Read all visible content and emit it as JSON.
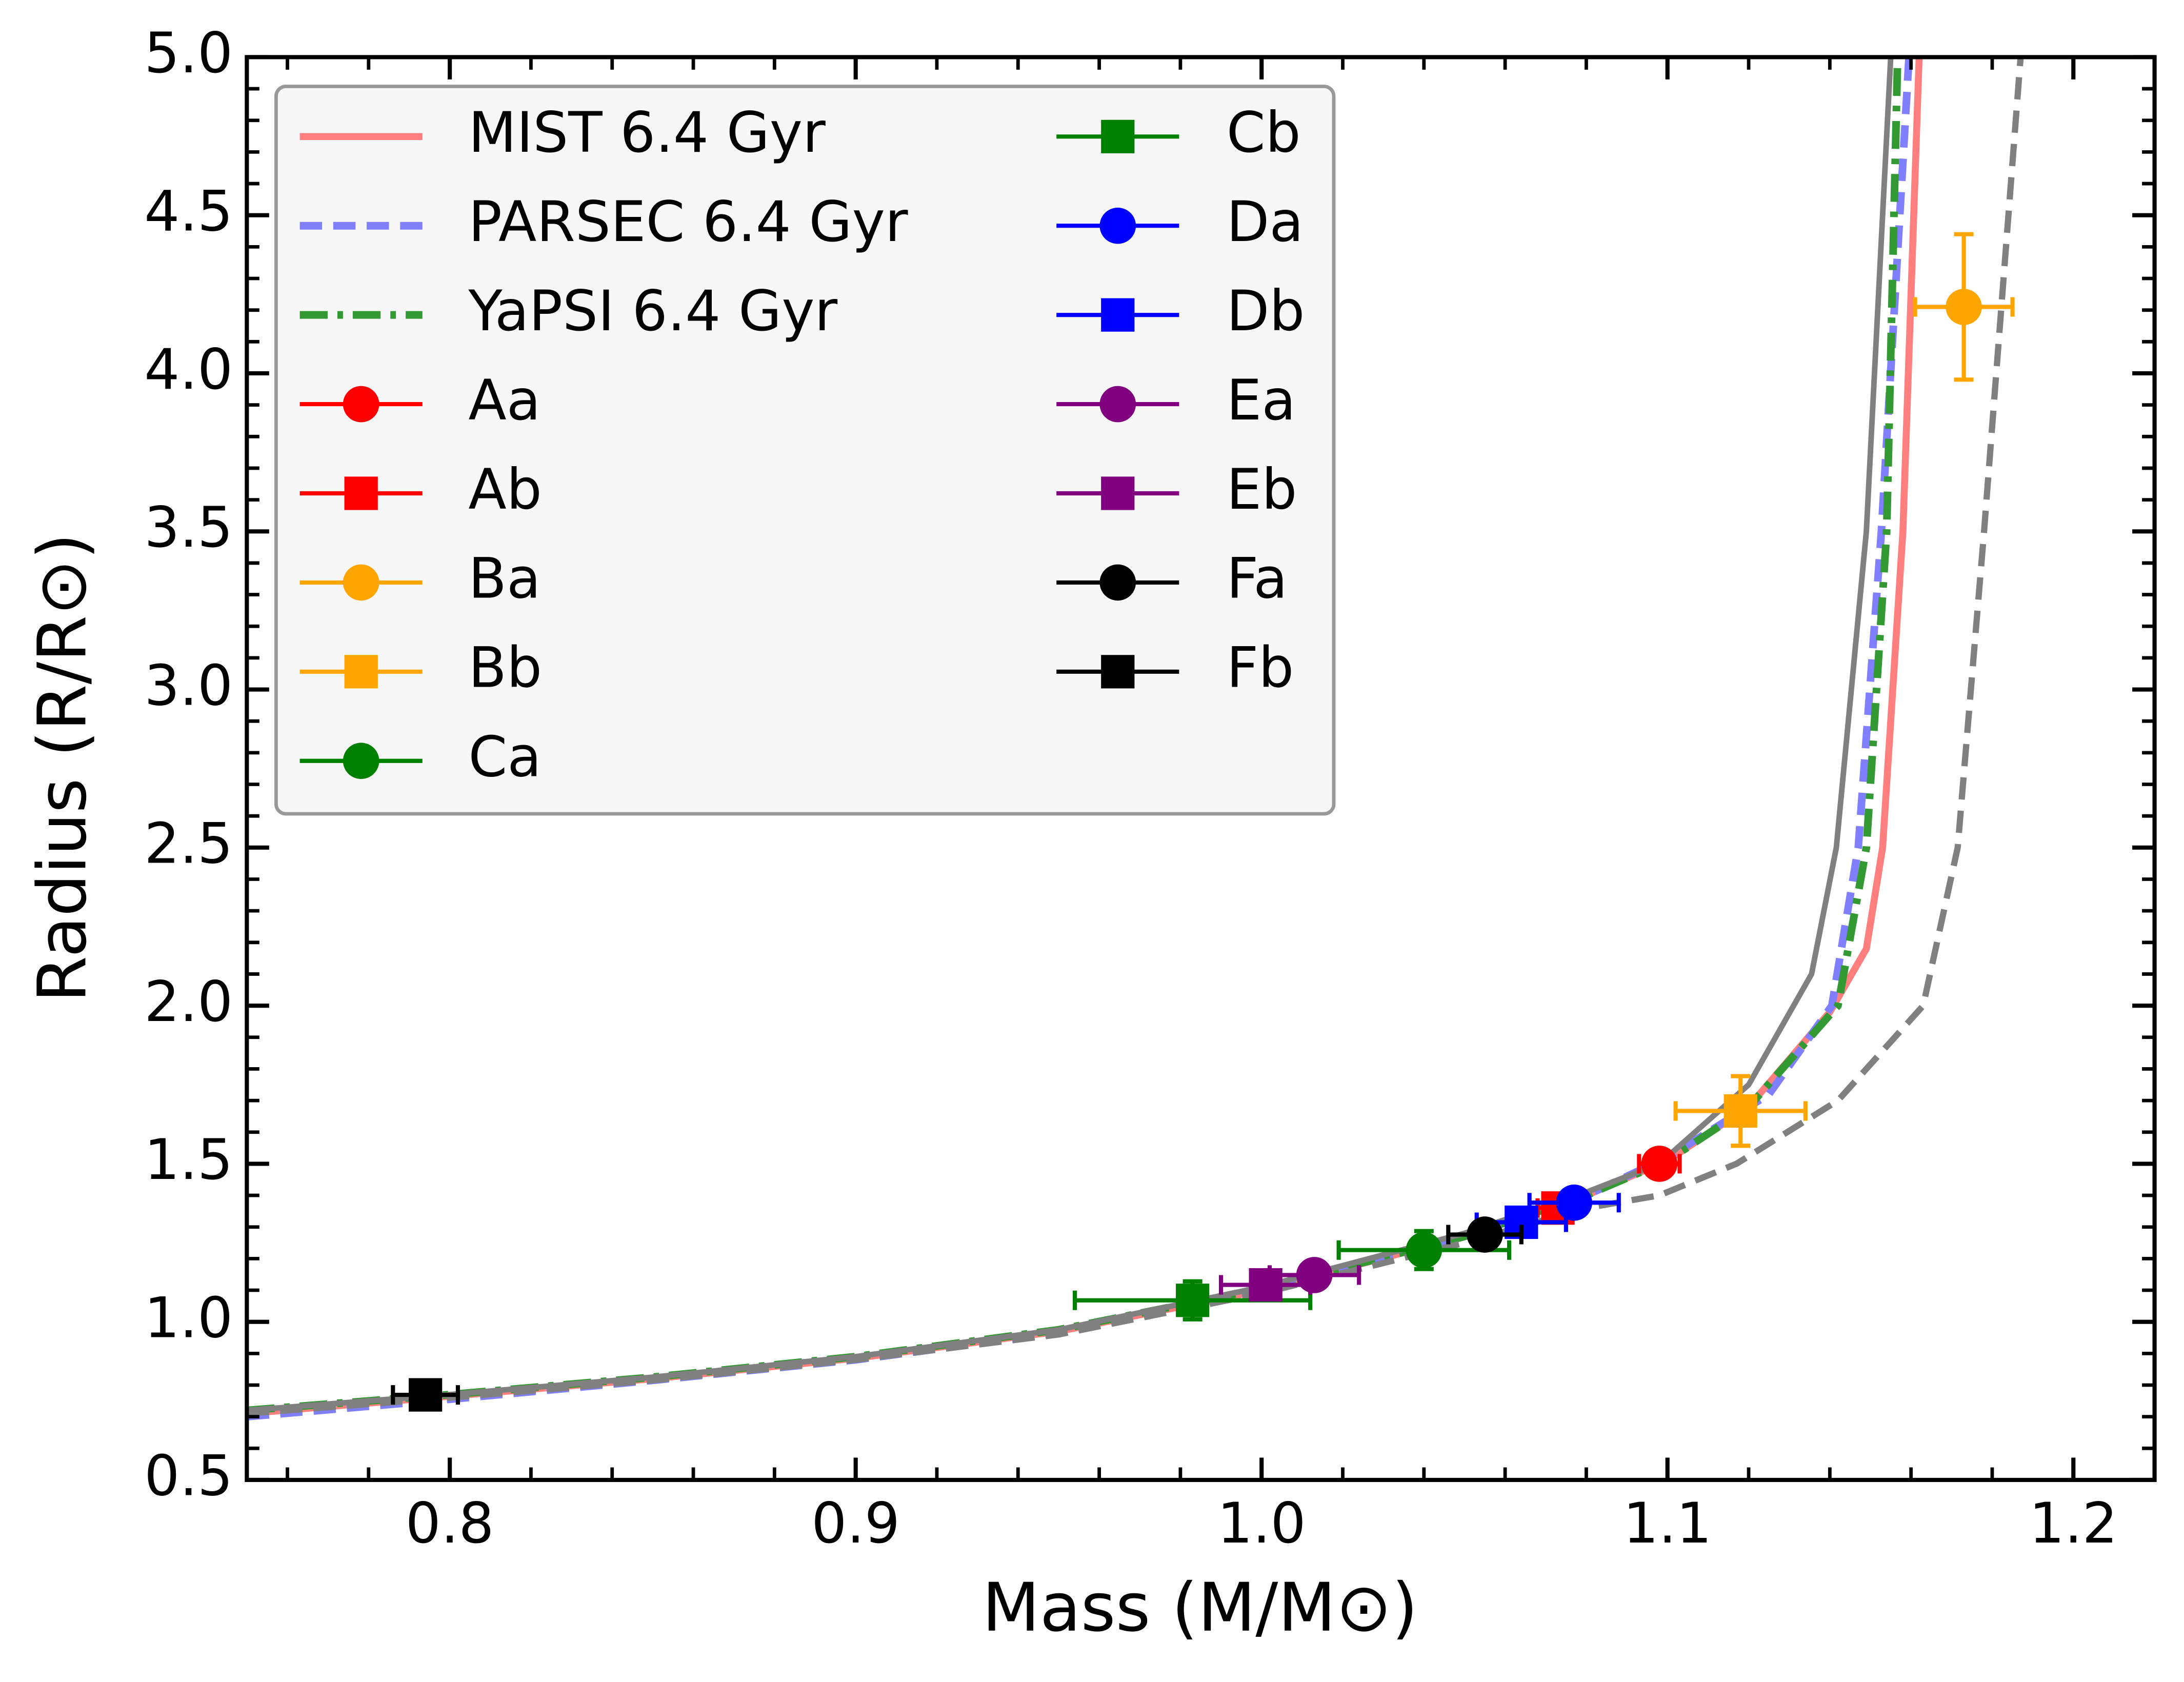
{
  "chart_data": {
    "type": "scatter",
    "xlabel": "Mass (M/M⊙)",
    "ylabel": "Radius (R/R⊙)",
    "xlim": [
      0.75,
      1.22
    ],
    "ylim": [
      0.5,
      5.0
    ],
    "xticks": [
      0.8,
      0.9,
      {
        "value": 1,
        "label": "1.0"
      },
      1.1,
      1.2
    ],
    "yticks": [
      0.5,
      {
        "value": 1,
        "label": "1.0"
      },
      1.5,
      {
        "value": 2,
        "label": "2.0"
      },
      2.5,
      {
        "value": 3,
        "label": "3.0"
      },
      3.5,
      {
        "value": 4,
        "label": "4.0"
      },
      4.5,
      {
        "value": 5,
        "label": "5.0"
      }
    ],
    "x_minor_ticks": [
      0.76,
      0.78,
      0.82,
      0.84,
      0.86,
      0.88,
      0.92,
      0.94,
      0.96,
      0.98,
      1.02,
      1.04,
      1.06,
      1.08,
      1.12,
      1.14,
      1.16,
      1.18
    ],
    "y_minor_ticks": [
      0.6,
      0.7,
      0.8,
      0.9,
      1.1,
      1.2,
      1.3,
      1.4,
      1.6,
      1.7,
      1.8,
      1.9,
      2.1,
      2.2,
      2.3,
      2.4,
      2.6,
      2.7,
      2.8,
      2.9,
      3.1,
      3.2,
      3.3,
      3.4,
      3.6,
      3.7,
      3.8,
      3.9,
      4.1,
      4.2,
      4.3,
      4.4,
      4.6,
      4.7,
      4.8,
      4.9
    ],
    "legend": "upper left",
    "series": [
      {
        "name": "MIST 6.4 Gyr",
        "kind": "line",
        "style": "solid",
        "color": "#ff7f7f",
        "x": [
          0.75,
          0.8,
          0.85,
          0.9,
          0.95,
          1.0,
          1.05,
          1.08,
          1.1,
          1.12,
          1.14,
          1.149,
          1.153,
          1.158,
          1.162
        ],
        "values": [
          0.71,
          0.765,
          0.82,
          0.885,
          0.97,
          1.1,
          1.27,
          1.4,
          1.51,
          1.68,
          1.98,
          2.18,
          2.5,
          3.5,
          5.0
        ]
      },
      {
        "name": "PARSEC 6.4 Gyr",
        "kind": "line",
        "style": "dashed",
        "color": "#7f7fff",
        "x": [
          0.75,
          0.8,
          0.85,
          0.9,
          0.95,
          1.0,
          1.05,
          1.08,
          1.1,
          1.125,
          1.1405,
          1.147,
          1.1527,
          1.1595
        ],
        "values": [
          0.7,
          0.755,
          0.815,
          0.88,
          0.965,
          1.095,
          1.27,
          1.4,
          1.52,
          1.72,
          2.0,
          2.5,
          3.5,
          5.0
        ]
      },
      {
        "name": "YaPSI 6.4 Gyr",
        "kind": "line",
        "style": "dashdot",
        "color": "#339933",
        "x": [
          0.75,
          0.8,
          0.85,
          0.9,
          0.95,
          1.0,
          1.05,
          1.08,
          1.1,
          1.12,
          1.142,
          1.149,
          1.154,
          1.1567
        ],
        "values": [
          0.72,
          0.77,
          0.825,
          0.89,
          0.975,
          1.105,
          1.27,
          1.4,
          1.51,
          1.68,
          2.0,
          2.5,
          3.5,
          5.0
        ]
      },
      {
        "kind": "line",
        "style": "solid",
        "color": "#808080",
        "x": [
          0.75,
          0.8,
          0.85,
          0.9,
          0.95,
          1.0,
          1.05,
          1.08,
          1.098,
          1.12,
          1.1355,
          1.1416,
          1.149,
          1.155
        ],
        "values": [
          0.72,
          0.77,
          0.825,
          0.89,
          0.975,
          1.11,
          1.28,
          1.41,
          1.5,
          1.75,
          2.1,
          2.5,
          3.5,
          5.0
        ]
      },
      {
        "kind": "line",
        "style": "dashed",
        "color": "#808080",
        "x": [
          0.75,
          0.8,
          0.85,
          0.9,
          0.95,
          1.0,
          1.05,
          1.08,
          1.098,
          1.117,
          1.142,
          1.163,
          1.1715,
          1.178,
          1.187
        ],
        "values": [
          0.71,
          0.76,
          0.815,
          0.88,
          0.96,
          1.09,
          1.25,
          1.36,
          1.4,
          1.5,
          1.7,
          2.0,
          2.5,
          3.5,
          5.0
        ]
      },
      {
        "name": "Aa",
        "kind": "point",
        "marker": "circle",
        "color": "#ff0000",
        "x": [
          1.098
        ],
        "values": [
          1.5
        ],
        "xerr": [
          0.005
        ],
        "yerr": [
          0.03
        ]
      },
      {
        "name": "Ab",
        "kind": "point",
        "marker": "square",
        "color": "#ff0000",
        "x": [
          1.073
        ],
        "values": [
          1.36
        ],
        "xerr": [
          0.005
        ],
        "yerr": [
          0.03
        ]
      },
      {
        "name": "Ba",
        "kind": "point",
        "marker": "circle",
        "color": "#ffa500",
        "x": [
          1.173
        ],
        "values": [
          4.21
        ],
        "xerr": [
          0.012
        ],
        "yerr": [
          0.23
        ]
      },
      {
        "name": "Bb",
        "kind": "point",
        "marker": "square",
        "color": "#ffa500",
        "x": [
          1.118
        ],
        "values": [
          1.667
        ],
        "xerr": [
          0.016
        ],
        "yerr": [
          0.11
        ]
      },
      {
        "name": "Ca",
        "kind": "point",
        "marker": "circle",
        "color": "#008000",
        "x": [
          1.04
        ],
        "values": [
          1.227
        ],
        "xerr": [
          0.021
        ],
        "yerr": [
          0.06
        ]
      },
      {
        "name": "Cb",
        "kind": "point",
        "marker": "square",
        "color": "#008000",
        "x": [
          0.983
        ],
        "values": [
          1.068
        ],
        "xerr": [
          0.029
        ],
        "yerr": [
          0.06
        ]
      },
      {
        "name": "Da",
        "kind": "point",
        "marker": "circle",
        "color": "#0000ff",
        "x": [
          1.077
        ],
        "values": [
          1.377
        ],
        "xerr": [
          0.011
        ],
        "yerr": [
          0.03
        ]
      },
      {
        "name": "Db",
        "kind": "point",
        "marker": "square",
        "color": "#0000ff",
        "x": [
          1.064
        ],
        "values": [
          1.315
        ],
        "xerr": [
          0.011
        ],
        "yerr": [
          0.03
        ]
      },
      {
        "name": "Ea",
        "kind": "point",
        "marker": "circle",
        "color": "#800080",
        "x": [
          1.013
        ],
        "values": [
          1.148
        ],
        "xerr": [
          0.011
        ],
        "yerr": [
          0.02
        ]
      },
      {
        "name": "Eb",
        "kind": "point",
        "marker": "square",
        "color": "#800080",
        "x": [
          1.001
        ],
        "values": [
          1.117
        ],
        "xerr": [
          0.011
        ],
        "yerr": [
          0.02
        ]
      },
      {
        "name": "Fa",
        "kind": "point",
        "marker": "circle",
        "color": "#000000",
        "x": [
          1.055
        ],
        "values": [
          1.276
        ],
        "xerr": [
          0.009
        ],
        "yerr": [
          0.02
        ]
      },
      {
        "name": "Fb",
        "kind": "point",
        "marker": "square",
        "color": "#000000",
        "x": [
          0.794
        ],
        "values": [
          0.769
        ],
        "xerr": [
          0.008
        ],
        "yerr": [
          0.02
        ]
      }
    ]
  }
}
